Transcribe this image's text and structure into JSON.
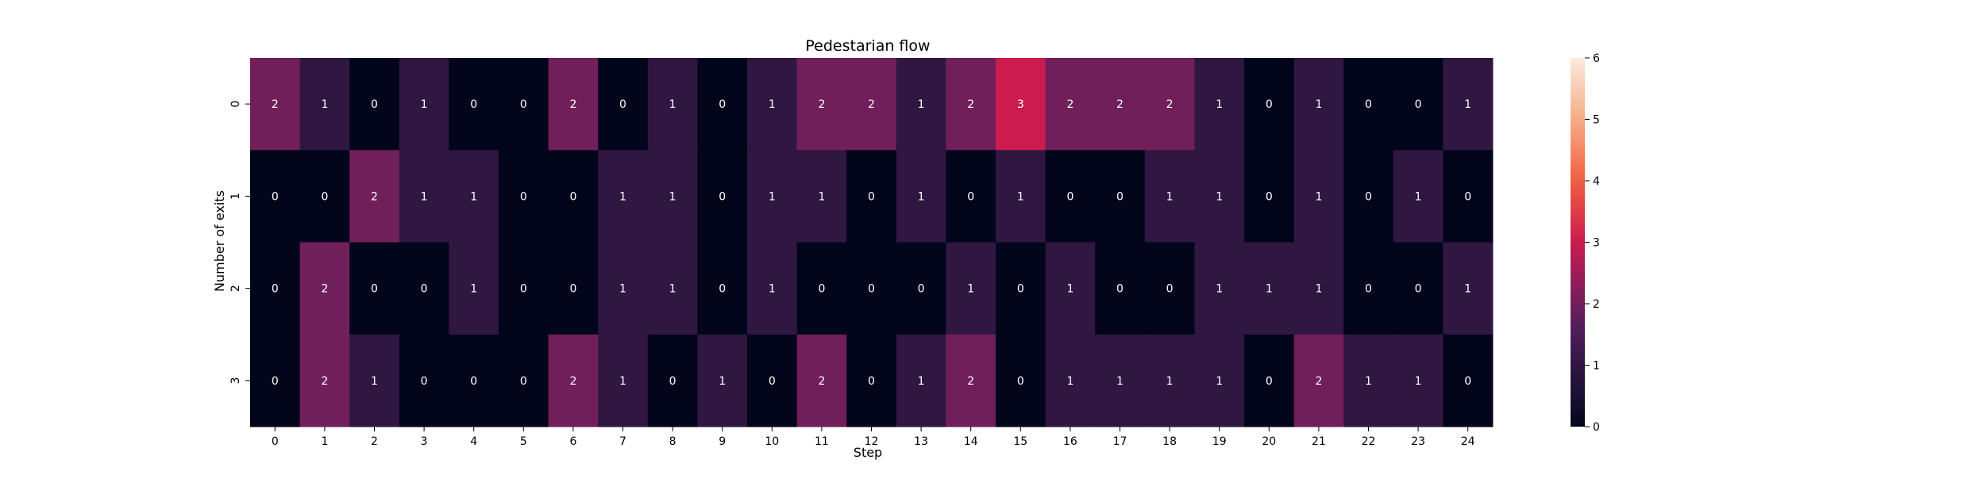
{
  "chart_data": {
    "type": "heatmap",
    "title": "Pedestarian flow",
    "xlabel": "Step",
    "ylabel": "Number of exits",
    "x_categories": [
      "0",
      "1",
      "2",
      "3",
      "4",
      "5",
      "6",
      "7",
      "8",
      "9",
      "10",
      "11",
      "12",
      "13",
      "14",
      "15",
      "16",
      "17",
      "18",
      "19",
      "20",
      "21",
      "22",
      "23",
      "24"
    ],
    "y_categories": [
      "0",
      "1",
      "2",
      "3"
    ],
    "values": [
      [
        2,
        1,
        0,
        1,
        0,
        0,
        2,
        0,
        1,
        0,
        1,
        2,
        2,
        1,
        2,
        3,
        2,
        2,
        2,
        1,
        0,
        1,
        0,
        0,
        1
      ],
      [
        0,
        0,
        2,
        1,
        1,
        0,
        0,
        1,
        1,
        0,
        1,
        1,
        0,
        1,
        0,
        1,
        0,
        0,
        1,
        1,
        0,
        1,
        0,
        1,
        0
      ],
      [
        0,
        2,
        0,
        0,
        1,
        0,
        0,
        1,
        1,
        0,
        1,
        0,
        0,
        0,
        1,
        0,
        1,
        0,
        0,
        1,
        1,
        1,
        0,
        0,
        1
      ],
      [
        0,
        2,
        1,
        0,
        0,
        0,
        2,
        1,
        0,
        1,
        0,
        2,
        0,
        1,
        2,
        0,
        1,
        1,
        1,
        1,
        0,
        2,
        1,
        1,
        0
      ]
    ],
    "colorbar": {
      "range": [
        0,
        6
      ],
      "ticks": [
        "0",
        "1",
        "2",
        "3",
        "4",
        "5",
        "6"
      ],
      "colormap": "rocket"
    },
    "annotations": true
  }
}
